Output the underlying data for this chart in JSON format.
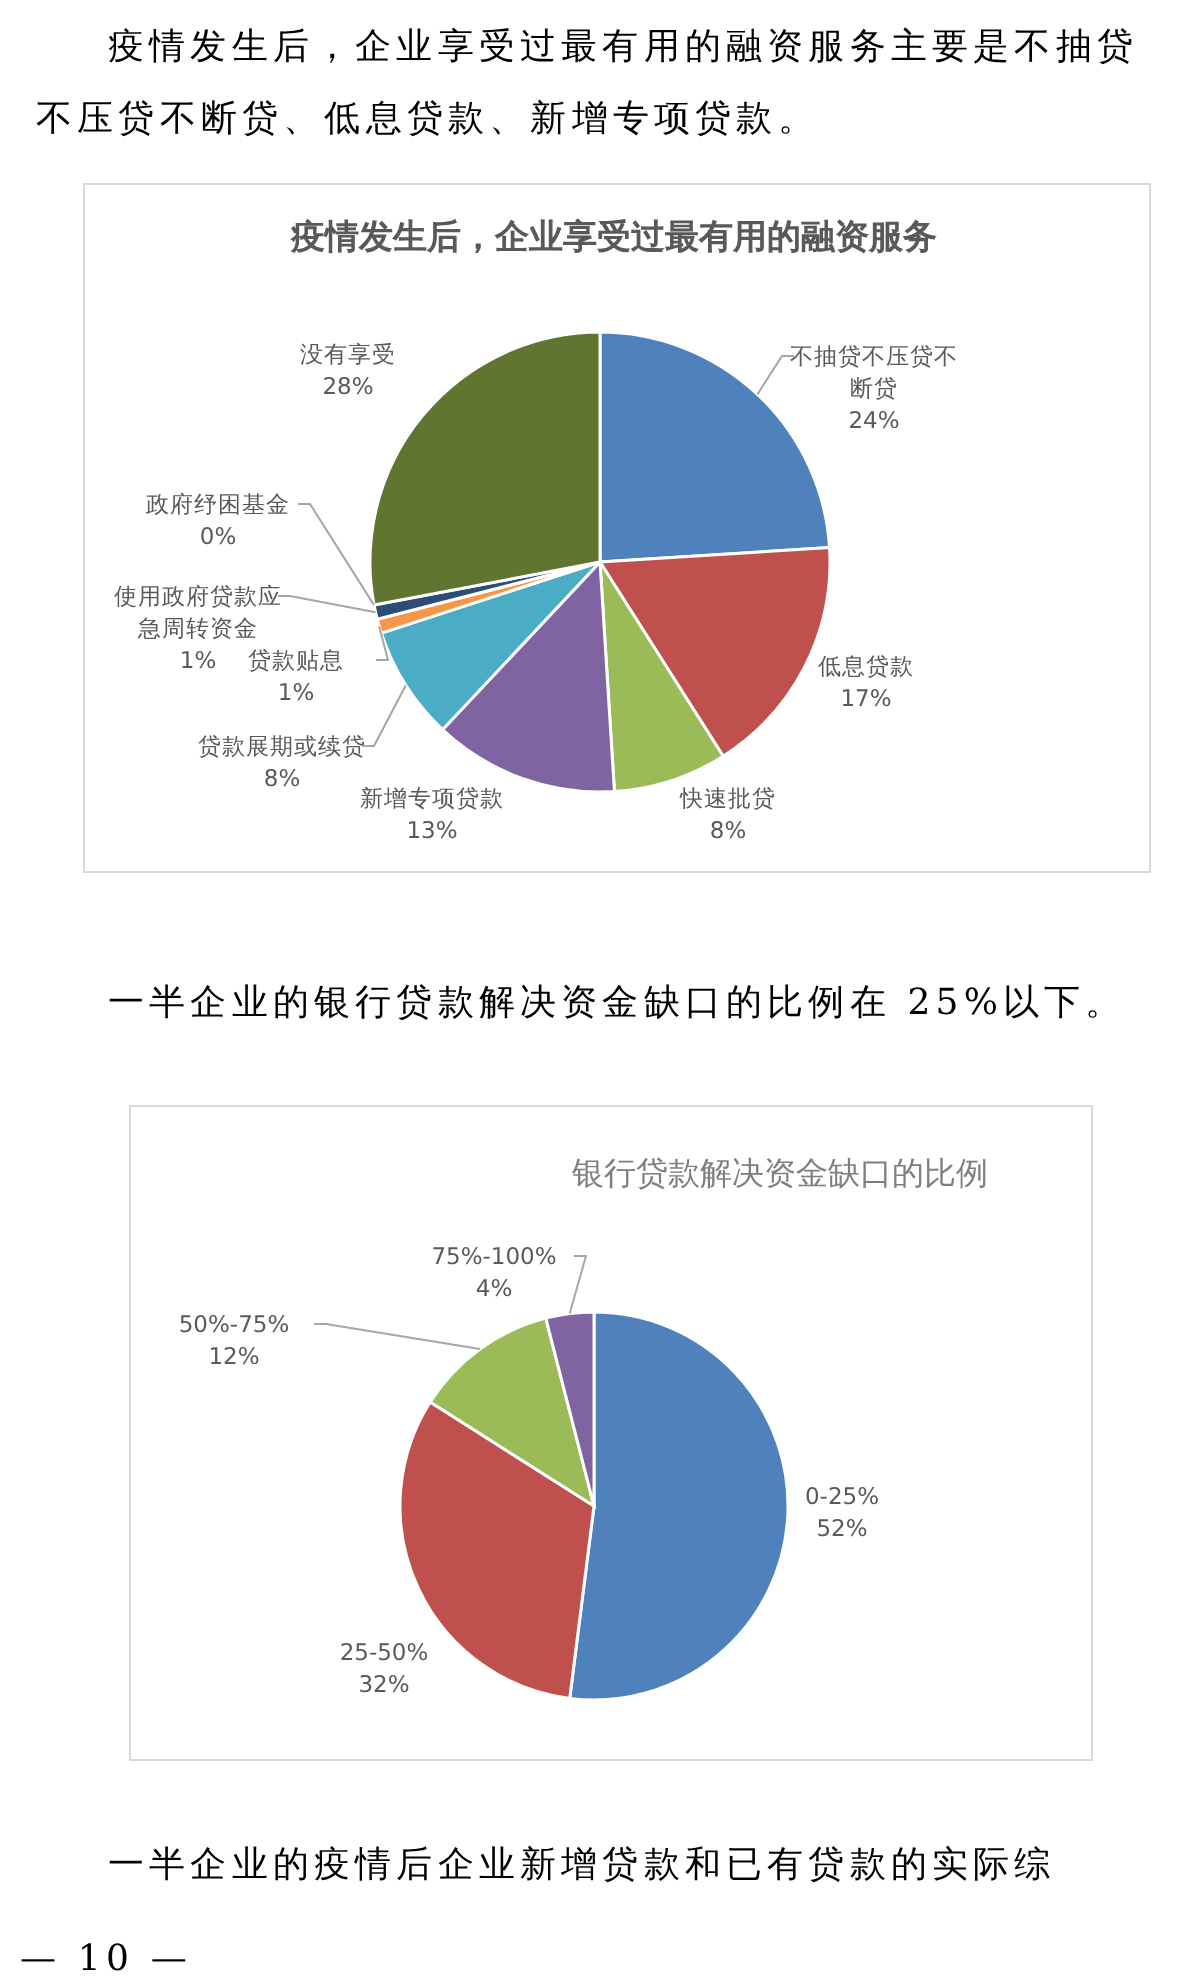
{
  "chart_data": [
    {
      "type": "pie",
      "title": "疫情发生后，企业享受过最有用的融资服务",
      "categories": [
        "不抽贷不压贷不断贷",
        "低息贷款",
        "快速批贷",
        "新增专项贷款",
        "贷款展期或续贷",
        "贷款贴息",
        "使用政府贷款应急周转资金",
        "政府纾困基金",
        "没有享受"
      ],
      "values": [
        24,
        17,
        8,
        13,
        8,
        1,
        1,
        0,
        28
      ],
      "value_labels": [
        "24%",
        "17%",
        "8%",
        "13%",
        "8%",
        "1%",
        "1%",
        "0%",
        "28%"
      ],
      "colors": [
        "#4f81bd",
        "#c0504d",
        "#9bbb59",
        "#8064a2",
        "#4bacc6",
        "#f79646",
        "#2c4d75",
        "#772c2a",
        "#5f7530"
      ],
      "annotations": [
        "疫情发生后，企业享受过最有用的融资服务主要是不抽贷不压贷不断贷、低息贷款、新增专项贷款。"
      ]
    },
    {
      "type": "pie",
      "title": "银行贷款解决资金缺口的比例",
      "categories": [
        "0-25%",
        "25-50%",
        "50%-75%",
        "75%-100%"
      ],
      "values": [
        52,
        32,
        12,
        4
      ],
      "value_labels": [
        "52%",
        "32%",
        "12%",
        "4%"
      ],
      "colors": [
        "#4f81bd",
        "#c0504d",
        "#9bbb59",
        "#8064a2"
      ],
      "annotations": [
        "一半企业的银行贷款解决资金缺口的比例在 25%以下。",
        "一半企业的疫情后企业新增贷款和已有贷款的实际综",
        "— 10 —"
      ]
    }
  ]
}
